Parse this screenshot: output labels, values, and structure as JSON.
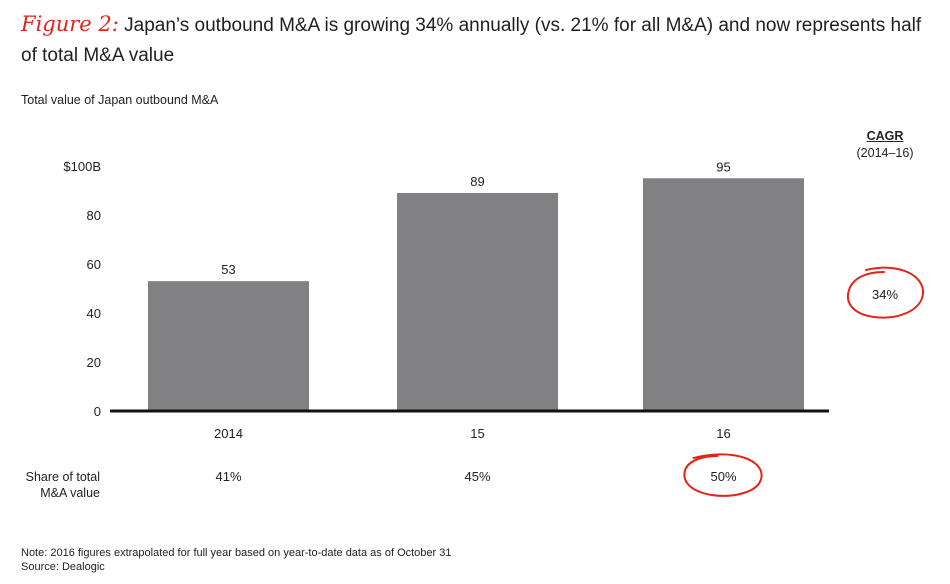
{
  "header": {
    "figure_label": "Figure 2:",
    "title": "Japan’s outbound M&A is growing 34% annually (vs. 21% for all M&A) and now represents half of total M&A value",
    "subtitle": "Total value of Japan outbound M&A"
  },
  "chart_data": {
    "type": "bar",
    "title": "Total value of Japan outbound M&A",
    "categories": [
      "2014",
      "15",
      "16"
    ],
    "values": [
      53,
      89,
      95
    ],
    "data_labels": [
      "53",
      "89",
      "95"
    ],
    "ylim": [
      0,
      100
    ],
    "y_ticks": [
      {
        "value": 0,
        "label": "0"
      },
      {
        "value": 20,
        "label": "20"
      },
      {
        "value": 40,
        "label": "40"
      },
      {
        "value": 60,
        "label": "60"
      },
      {
        "value": 80,
        "label": "80"
      },
      {
        "value": 100,
        "label": "$100B"
      }
    ],
    "grid": false,
    "bar_color": "#818184",
    "cagr": {
      "heading": "CAGR",
      "period": "(2014–16)",
      "value": "34%"
    },
    "share": {
      "label_line1": "Share of total",
      "label_line2": "M&A value",
      "values": [
        "41%",
        "45%",
        "50%"
      ]
    },
    "highlight_color": "#e1251b"
  },
  "footer": {
    "note": "Note: 2016 figures extrapolated for full year based on year-to-date data as of October 31",
    "source": "Source: Dealogic"
  }
}
